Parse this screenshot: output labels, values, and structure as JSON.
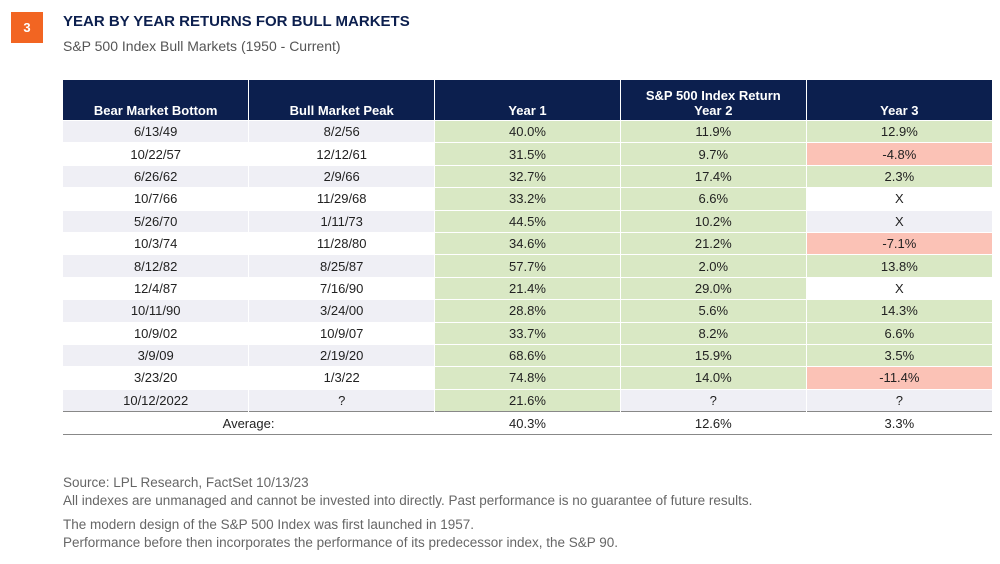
{
  "badge": "3",
  "title": "YEAR BY YEAR RETURNS FOR BULL MARKETS",
  "subtitle": "S&P 500 Index Bull Markets (1950 - Current)",
  "colors": {
    "header": "#0c1f4e",
    "positive": "#d9e8c4",
    "negative": "#fbc2b6",
    "badge": "#f26522"
  },
  "chart_data": {
    "type": "table",
    "columns": [
      "Bear Market Bottom",
      "Bull Market Peak",
      "Year 1",
      "Year 2",
      "Year 3"
    ],
    "group_header": "S&P 500 Index Return",
    "rows": [
      [
        "6/13/49",
        "8/2/56",
        "40.0%",
        "11.9%",
        "12.9%"
      ],
      [
        "10/22/57",
        "12/12/61",
        "31.5%",
        "9.7%",
        "-4.8%"
      ],
      [
        "6/26/62",
        "2/9/66",
        "32.7%",
        "17.4%",
        "2.3%"
      ],
      [
        "10/7/66",
        "11/29/68",
        "33.2%",
        "6.6%",
        "X"
      ],
      [
        "5/26/70",
        "1/11/73",
        "44.5%",
        "10.2%",
        "X"
      ],
      [
        "10/3/74",
        "11/28/80",
        "34.6%",
        "21.2%",
        "-7.1%"
      ],
      [
        "8/12/82",
        "8/25/87",
        "57.7%",
        "2.0%",
        "13.8%"
      ],
      [
        "12/4/87",
        "7/16/90",
        "21.4%",
        "29.0%",
        "X"
      ],
      [
        "10/11/90",
        "3/24/00",
        "28.8%",
        "5.6%",
        "14.3%"
      ],
      [
        "10/9/02",
        "10/9/07",
        "33.7%",
        "8.2%",
        "6.6%"
      ],
      [
        "3/9/09",
        "2/19/20",
        "68.6%",
        "15.9%",
        "3.5%"
      ],
      [
        "3/23/20",
        "1/3/22",
        "74.8%",
        "14.0%",
        "-11.4%"
      ],
      [
        "10/12/2022",
        "?",
        "21.6%",
        "?",
        "?"
      ]
    ],
    "average": {
      "label": "Average:",
      "values": [
        "40.3%",
        "12.6%",
        "3.3%"
      ]
    }
  },
  "notes": [
    "Source: LPL Research, FactSet  10/13/23",
    "All indexes are unmanaged and cannot be invested into directly. Past performance is no guarantee of future results.",
    "The modern design of the S&P 500 Index was first launched in 1957.",
    "Performance before then incorporates the performance of its predecessor index, the S&P 90."
  ]
}
